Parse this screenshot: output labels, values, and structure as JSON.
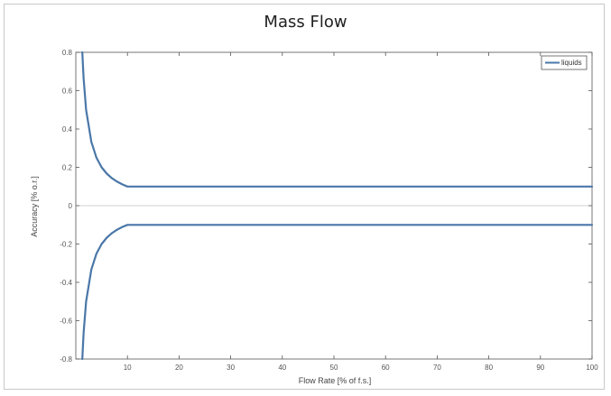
{
  "chart_data": {
    "type": "line",
    "title": "Mass Flow",
    "xlabel": "Flow Rate [% of f.s.]",
    "ylabel": "Accuracy [% o.r.]",
    "xlim": [
      0,
      100
    ],
    "ylim": [
      -0.8,
      0.8
    ],
    "xticks": [
      10,
      20,
      30,
      40,
      50,
      60,
      70,
      80,
      90,
      100
    ],
    "yticks": [
      -0.8,
      -0.6,
      -0.4,
      -0.2,
      0,
      0.2,
      0.4,
      0.6,
      0.8
    ],
    "ytick_labels": [
      "-0.8",
      "-0.6",
      "-0.4",
      "-0.2",
      "0",
      "0.2",
      "0.4",
      "0.6",
      "0.8"
    ],
    "grid": false,
    "legend_position": "top-right",
    "series": [
      {
        "name": "liquids",
        "color": "#4a77a8",
        "x": [
          1.25,
          1.5,
          2,
          3,
          4,
          5,
          6,
          7,
          8,
          9,
          10,
          20,
          30,
          40,
          50,
          60,
          70,
          80,
          90,
          100
        ],
        "y": [
          0.8,
          0.667,
          0.5,
          0.333,
          0.25,
          0.2,
          0.167,
          0.143,
          0.125,
          0.111,
          0.1,
          0.1,
          0.1,
          0.1,
          0.1,
          0.1,
          0.1,
          0.1,
          0.1,
          0.1
        ]
      },
      {
        "color": "#4a77a8",
        "x": [
          1.25,
          1.5,
          2,
          3,
          4,
          5,
          6,
          7,
          8,
          9,
          10,
          20,
          30,
          40,
          50,
          60,
          70,
          80,
          90,
          100
        ],
        "y": [
          -0.8,
          -0.667,
          -0.5,
          -0.333,
          -0.25,
          -0.2,
          -0.167,
          -0.143,
          -0.125,
          -0.111,
          -0.1,
          -0.1,
          -0.1,
          -0.1,
          -0.1,
          -0.1,
          -0.1,
          -0.1,
          -0.1,
          -0.1
        ]
      }
    ]
  }
}
